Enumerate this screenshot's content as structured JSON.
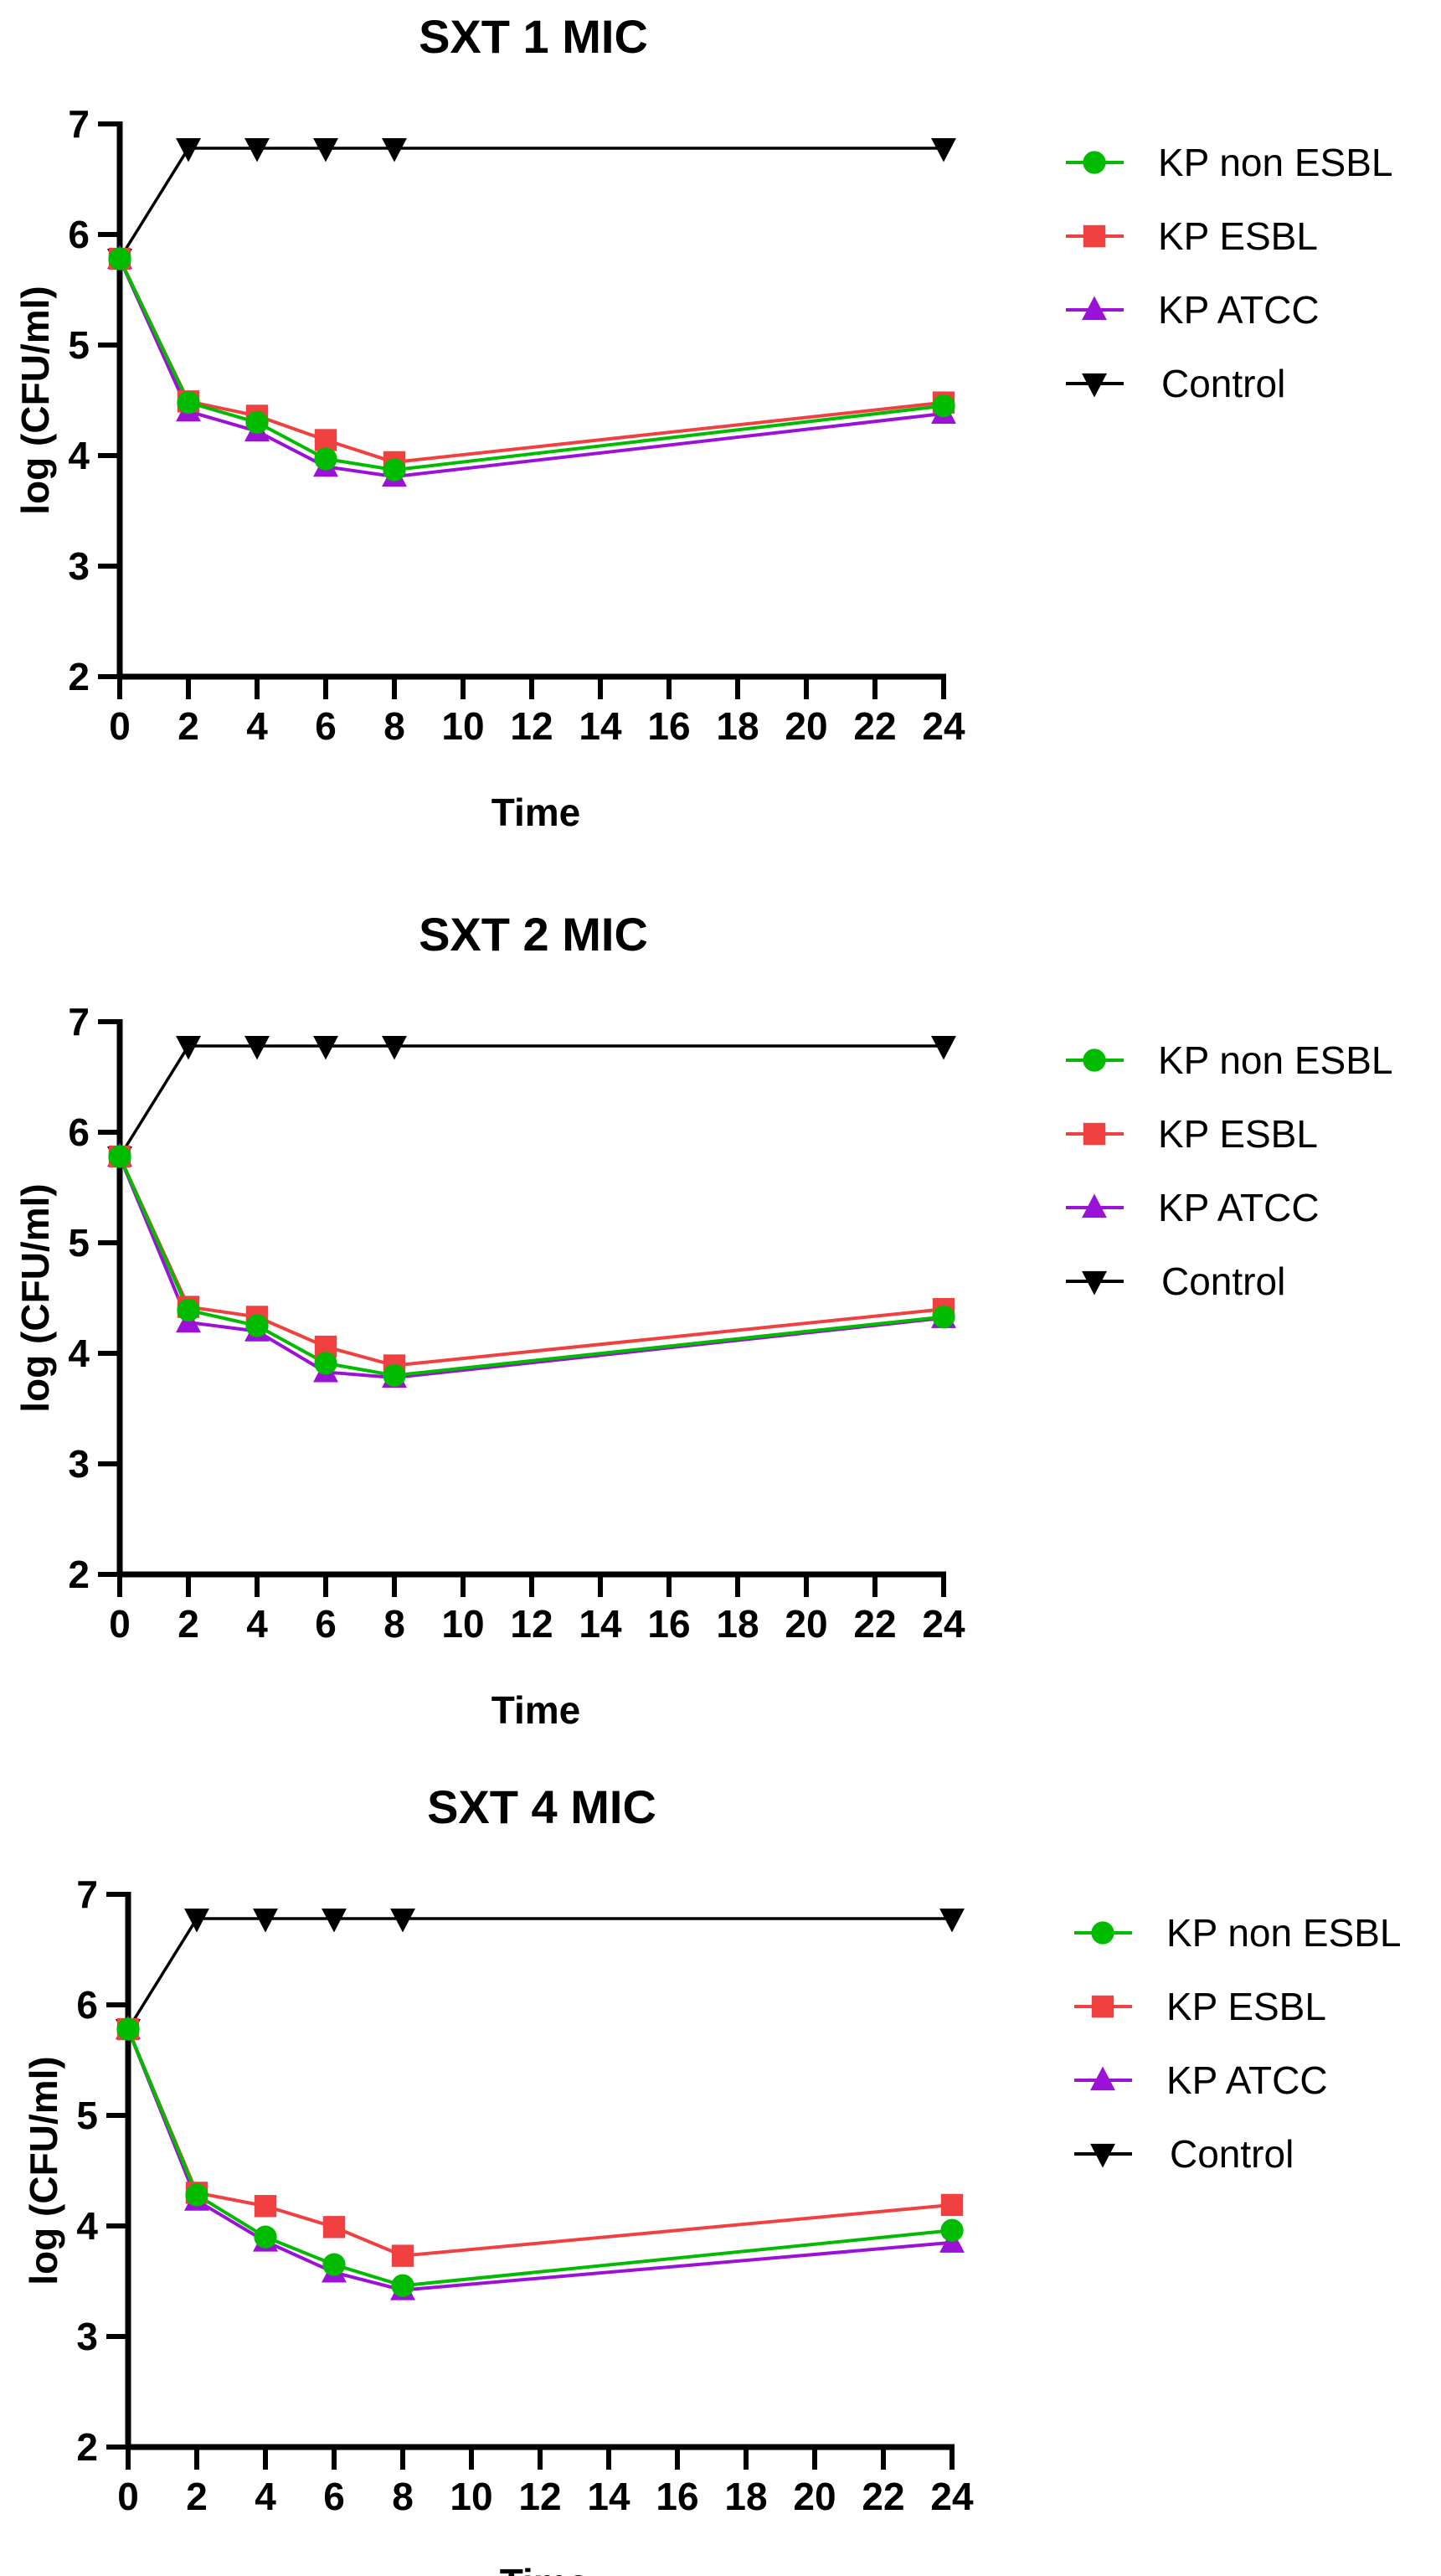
{
  "chart_data": [
    {
      "type": "line",
      "title": "SXT 1 MIC",
      "xlabel": "Time",
      "ylabel": "log (CFU/ml)",
      "xlim": [
        0,
        24
      ],
      "ylim": [
        2,
        7
      ],
      "xticks": [
        0,
        2,
        4,
        6,
        8,
        10,
        12,
        14,
        16,
        18,
        20,
        22,
        24
      ],
      "yticks": [
        2,
        3,
        4,
        5,
        6,
        7
      ],
      "grid": false,
      "legend": "right",
      "x": [
        0,
        2,
        4,
        6,
        8,
        24
      ],
      "series": [
        {
          "name": "KP non ESBL",
          "color": "#00bb00",
          "marker": "circle",
          "values": [
            5.78,
            4.48,
            4.3,
            3.97,
            3.87,
            4.45
          ]
        },
        {
          "name": "KP ESBL",
          "color": "#f04040",
          "marker": "square",
          "values": [
            5.78,
            4.49,
            4.36,
            4.14,
            3.94,
            4.48
          ]
        },
        {
          "name": "KP ATCC",
          "color": "#9b11d6",
          "marker": "triangle-up",
          "values": [
            5.78,
            4.4,
            4.22,
            3.9,
            3.81,
            4.38
          ]
        },
        {
          "name": "Control",
          "color": "#000000",
          "marker": "triangle-down",
          "values": [
            5.78,
            6.78,
            6.78,
            6.78,
            6.78,
            6.78
          ]
        }
      ]
    },
    {
      "type": "line",
      "title": "SXT 2 MIC",
      "xlabel": "Time",
      "ylabel": "log (CFU/ml)",
      "xlim": [
        0,
        24
      ],
      "ylim": [
        2,
        7
      ],
      "xticks": [
        0,
        2,
        4,
        6,
        8,
        10,
        12,
        14,
        16,
        18,
        20,
        22,
        24
      ],
      "yticks": [
        2,
        3,
        4,
        5,
        6,
        7
      ],
      "grid": false,
      "legend": "right",
      "x": [
        0,
        2,
        4,
        6,
        8,
        24
      ],
      "series": [
        {
          "name": "KP non ESBL",
          "color": "#00bb00",
          "marker": "circle",
          "values": [
            5.78,
            4.39,
            4.25,
            3.91,
            3.8,
            4.33
          ]
        },
        {
          "name": "KP ESBL",
          "color": "#f04040",
          "marker": "square",
          "values": [
            5.78,
            4.42,
            4.33,
            4.06,
            3.89,
            4.4
          ]
        },
        {
          "name": "KP ATCC",
          "color": "#9b11d6",
          "marker": "triangle-up",
          "values": [
            5.78,
            4.28,
            4.2,
            3.83,
            3.78,
            4.32
          ]
        },
        {
          "name": "Control",
          "color": "#000000",
          "marker": "triangle-down",
          "values": [
            5.78,
            6.78,
            6.78,
            6.78,
            6.78,
            6.78
          ]
        }
      ]
    },
    {
      "type": "line",
      "title": "SXT 4 MIC",
      "xlabel": "Time",
      "ylabel": "log (CFU/ml)",
      "xlim": [
        0,
        24
      ],
      "ylim": [
        2,
        7
      ],
      "xticks": [
        0,
        2,
        4,
        6,
        8,
        10,
        12,
        14,
        16,
        18,
        20,
        22,
        24
      ],
      "yticks": [
        2,
        3,
        4,
        5,
        6,
        7
      ],
      "grid": false,
      "legend": "right",
      "x": [
        0,
        2,
        4,
        6,
        8,
        24
      ],
      "series": [
        {
          "name": "KP non ESBL",
          "color": "#00bb00",
          "marker": "circle",
          "values": [
            5.78,
            4.28,
            3.9,
            3.65,
            3.46,
            3.96
          ]
        },
        {
          "name": "KP ESBL",
          "color": "#f04040",
          "marker": "square",
          "values": [
            5.78,
            4.3,
            4.18,
            3.99,
            3.73,
            4.19
          ]
        },
        {
          "name": "KP ATCC",
          "color": "#9b11d6",
          "marker": "triangle-up",
          "values": [
            5.78,
            4.23,
            3.86,
            3.58,
            3.42,
            3.85
          ]
        },
        {
          "name": "Control",
          "color": "#000000",
          "marker": "triangle-down",
          "values": [
            5.78,
            6.78,
            6.78,
            6.78,
            6.78,
            6.78
          ]
        }
      ]
    }
  ]
}
